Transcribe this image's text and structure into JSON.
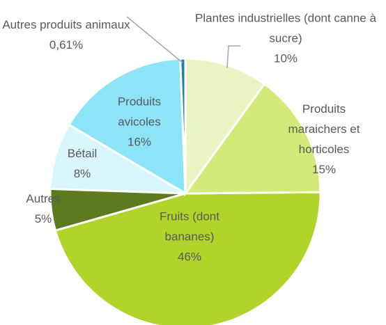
{
  "chart_data": {
    "type": "pie",
    "categories": [
      "Plantes industrielles (dont canne à sucre)",
      "Produits maraichers et horticoles",
      "Fruits (dont bananes)",
      "Autres",
      "Bétail",
      "Produits avicoles",
      "Autres produits animaux"
    ],
    "values": [
      10,
      15,
      46,
      5,
      8,
      16,
      0.61
    ],
    "value_labels": [
      "10%",
      "15%",
      "46%",
      "5%",
      "8%",
      "16%",
      "0,61%"
    ],
    "colors": [
      "#ebf5c4",
      "#d3ea7a",
      "#b0d42a",
      "#5e7a1e",
      "#d9f6fd",
      "#8de4f7",
      "#1e7fa8"
    ]
  }
}
